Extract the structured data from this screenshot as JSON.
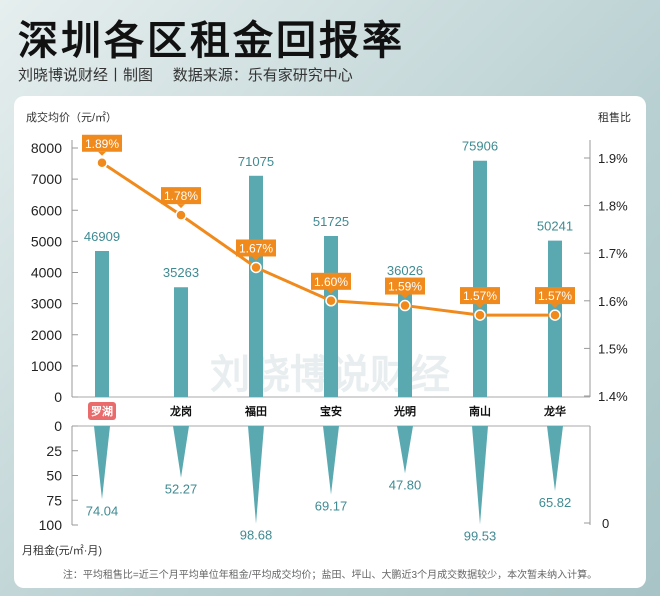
{
  "header": {
    "title": "深圳各区租金回报率",
    "subtitle": "刘晓博说财经丨制图　 数据来源：乐有家研究中心"
  },
  "watermark": "刘晓博说财经",
  "note": "注：平均租售比=近三个月平均单位年租金/平均成交均价；盐田、坪山、大鹏近3个月成交数据较少，本次暂未纳入计算。",
  "colors": {
    "bar": "#5aa9b1",
    "line": "#f08a1c",
    "highlight": "#e96b6b",
    "label": "#3f8a92"
  },
  "chart_data": {
    "type": "bar+line",
    "categories": [
      "罗湖",
      "龙岗",
      "福田",
      "宝安",
      "光明",
      "南山",
      "龙华"
    ],
    "highlight_category": "罗湖",
    "left_axis": {
      "label": "成交均价（元/㎡）",
      "ticks": [
        0,
        1000,
        2000,
        3000,
        4000,
        5000,
        6000,
        7000,
        8000
      ]
    },
    "right_axis": {
      "label": "租售比",
      "ticks": [
        "1.4%",
        "1.5%",
        "1.6%",
        "1.7%",
        "1.8%",
        "1.9%"
      ],
      "range": [
        1.4,
        1.9
      ]
    },
    "bottom_axis": {
      "label": "月租金(元/㎡·月)",
      "ticks": [
        0,
        25,
        50,
        75,
        100
      ],
      "right_tick": "0"
    },
    "series": [
      {
        "name": "成交均价",
        "type": "bar",
        "values": [
          46909,
          35263,
          71075,
          51725,
          36026,
          75906,
          50241
        ]
      },
      {
        "name": "租售比",
        "type": "line",
        "values": [
          1.89,
          1.78,
          1.67,
          1.6,
          1.59,
          1.57,
          1.57
        ],
        "labels": [
          "1.89%",
          "1.78%",
          "1.67%",
          "1.60%",
          "1.59%",
          "1.57%",
          "1.57%"
        ]
      },
      {
        "name": "月租金",
        "type": "inverted-spike",
        "values": [
          74.04,
          52.27,
          98.68,
          69.17,
          47.8,
          99.53,
          65.82
        ],
        "labels": [
          "74.04",
          "52.27",
          "98.68",
          "69.17",
          "47.80",
          "99.53",
          "65.82"
        ]
      }
    ]
  }
}
